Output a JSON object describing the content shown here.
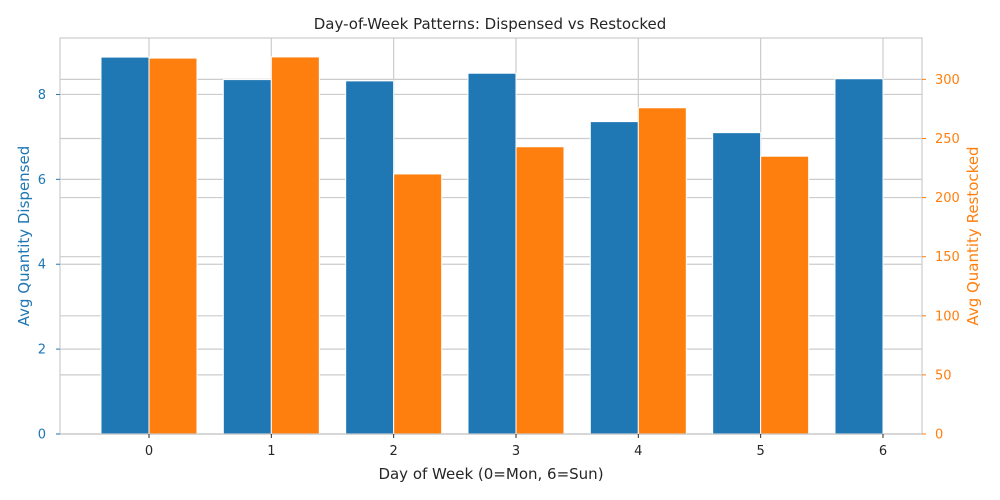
{
  "chart_data": {
    "type": "bar",
    "title": "Day-of-Week Patterns: Dispensed vs Restocked",
    "xlabel": "Day of Week (0=Mon, 6=Sun)",
    "categories": [
      "0",
      "1",
      "2",
      "3",
      "4",
      "5",
      "6"
    ],
    "series": [
      {
        "name": "Avg Quantity Dispensed",
        "axis": "left",
        "color": "#1f77b4",
        "values": [
          8.88,
          8.35,
          8.32,
          8.5,
          7.36,
          7.1,
          8.37
        ]
      },
      {
        "name": "Avg Quantity Restocked",
        "axis": "right",
        "color": "#ff7f0e",
        "values": [
          318,
          319,
          220,
          243,
          276,
          235,
          0
        ]
      }
    ],
    "ylabel_left": "Avg Quantity Dispensed",
    "ylabel_right": "Avg Quantity Restocked",
    "ylim_left": [
      0,
      9.33
    ],
    "ylim_right": [
      0,
      335
    ],
    "yticks_left": [
      0,
      2,
      4,
      6,
      8
    ],
    "yticks_right": [
      0,
      50,
      100,
      150,
      200,
      250,
      300
    ],
    "grid": true,
    "legend": "none"
  }
}
